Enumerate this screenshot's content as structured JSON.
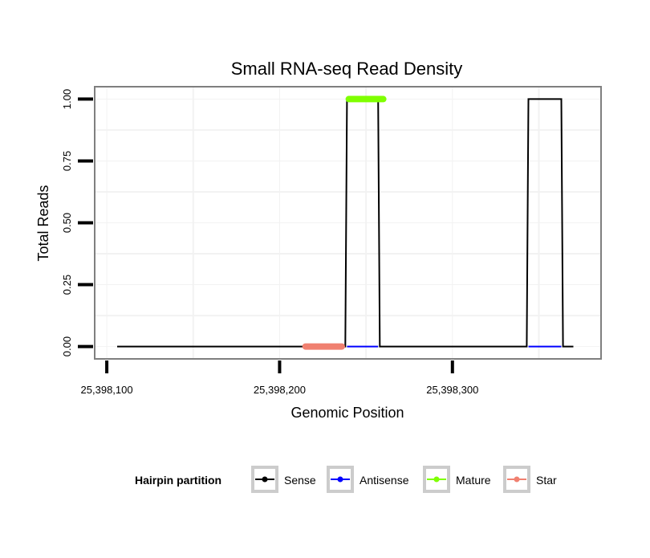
{
  "chart_data": {
    "type": "line",
    "title": "Small RNA-seq Read Density",
    "xlabel": "Genomic Position",
    "ylabel": "Total Reads",
    "xlim": [
      25398093,
      25398386
    ],
    "ylim": [
      -0.05,
      1.05
    ],
    "x_ticks": [
      {
        "value": 25398100,
        "label": "25,398,100"
      },
      {
        "value": 25398200,
        "label": "25,398,200"
      },
      {
        "value": 25398300,
        "label": "25,398,300"
      }
    ],
    "y_ticks": [
      {
        "value": 0.0,
        "label": "0.00"
      },
      {
        "value": 0.25,
        "label": "0.25"
      },
      {
        "value": 0.5,
        "label": "0.50"
      },
      {
        "value": 0.75,
        "label": "0.75"
      },
      {
        "value": 1.0,
        "label": "1.00"
      }
    ],
    "x_minor_gridlines": [
      25398150,
      25398250,
      25398350
    ],
    "y_minor_gridlines": [
      0.125,
      0.375,
      0.625,
      0.875
    ],
    "series": [
      {
        "name": "Sense",
        "color": "#000000",
        "points": [
          [
            25398106,
            0
          ],
          [
            25398238,
            0
          ],
          [
            25398239,
            1
          ],
          [
            25398257,
            1
          ],
          [
            25398258,
            0
          ],
          [
            25398343,
            0
          ],
          [
            25398344,
            1
          ],
          [
            25398363,
            1
          ],
          [
            25398364,
            0
          ],
          [
            25398370,
            0
          ]
        ]
      },
      {
        "name": "Antisense",
        "color": "#0000ff",
        "points": [
          [
            25398239,
            0
          ],
          [
            25398257,
            0
          ],
          [
            25398344,
            0
          ],
          [
            25398363,
            0
          ]
        ]
      },
      {
        "name": "Mature",
        "color": "#7fff00",
        "points": [
          [
            25398240,
            1
          ],
          [
            25398260,
            1
          ]
        ]
      },
      {
        "name": "Star",
        "color": "#f08070",
        "points": [
          [
            25398215,
            0
          ],
          [
            25398236,
            0
          ]
        ]
      }
    ],
    "legend": {
      "title": "Hairpin partition",
      "position": "bottom",
      "entries": [
        "Sense",
        "Antisense",
        "Mature",
        "Star"
      ]
    }
  },
  "colors": {
    "panel_border": "#7f7f7f",
    "grid": "#f2f2f2",
    "legend_key_border": "#cccccc"
  }
}
